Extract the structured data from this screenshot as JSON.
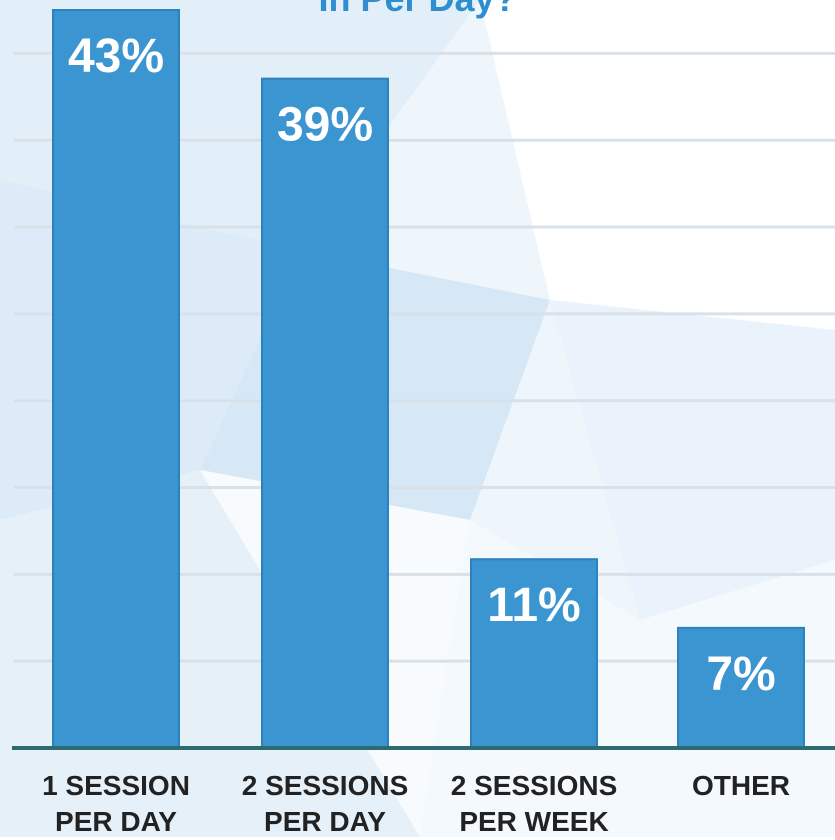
{
  "title": "In Per Day?",
  "colors": {
    "bar": "#3a95d0",
    "bar_edge": "#2c82bd",
    "grid": "#d9e1e8",
    "baseline": "#2d6b73",
    "label": "#ffffff",
    "category": "#222222"
  },
  "chart_data": {
    "type": "bar",
    "title": "In Per Day?",
    "xlabel": "",
    "ylabel": "",
    "ylim": [
      0,
      43
    ],
    "grid": true,
    "categories": [
      [
        "1 SESSION",
        "PER DAY"
      ],
      [
        "2 SESSIONS",
        "PER DAY"
      ],
      [
        "2 SESSIONS",
        "PER WEEK"
      ],
      [
        "OTHER"
      ]
    ],
    "values": [
      43,
      39,
      11,
      7
    ],
    "data_labels": [
      "43%",
      "39%",
      "11%",
      "7%"
    ]
  }
}
